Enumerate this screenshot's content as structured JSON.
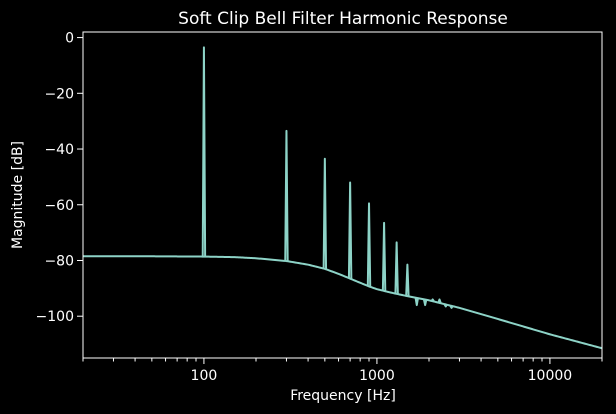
{
  "chart_data": {
    "type": "line",
    "title": "Soft Clip Bell Filter Harmonic Response",
    "xlabel": "Frequency [Hz]",
    "ylabel": "Magnitude [dB]",
    "xscale": "log",
    "xlim": [
      20,
      20000
    ],
    "ylim": [
      -115,
      2
    ],
    "grid": false,
    "line_color": "#8dd3c7",
    "background": "#000000",
    "x_tick_labels": [
      {
        "value": 100,
        "label": "100"
      },
      {
        "value": 1000,
        "label": "1000"
      },
      {
        "value": 10000,
        "label": "10000"
      }
    ],
    "y_tick_labels": [
      {
        "value": 0,
        "label": "0"
      },
      {
        "value": -20,
        "label": "−20"
      },
      {
        "value": -40,
        "label": "−40"
      },
      {
        "value": -60,
        "label": "−60"
      },
      {
        "value": -80,
        "label": "−80"
      },
      {
        "value": -100,
        "label": "−100"
      }
    ],
    "noise_floor": {
      "x": [
        20,
        50,
        100,
        150,
        200,
        300,
        400,
        500,
        600,
        700,
        800,
        900,
        1000,
        1200,
        1500,
        2000,
        3000,
        5000,
        10000,
        20000
      ],
      "y": [
        -78.5,
        -78.5,
        -78.6,
        -78.8,
        -79.2,
        -80.2,
        -81.5,
        -83.0,
        -84.8,
        -86.5,
        -88.0,
        -89.3,
        -90.3,
        -91.5,
        -92.8,
        -94.3,
        -97.0,
        -101.0,
        -106.5,
        -111.5
      ]
    },
    "harmonics": {
      "x": [
        100,
        300,
        500,
        700,
        900,
        1100,
        1300,
        1500,
        1700,
        1900,
        2100,
        2300,
        2500,
        2700
      ],
      "y": [
        -3.5,
        -33.5,
        -43.5,
        -52,
        -59.5,
        -66.5,
        -73.5,
        -81.5,
        -96,
        -96,
        -94,
        -94,
        -96.5,
        -97
      ]
    }
  }
}
